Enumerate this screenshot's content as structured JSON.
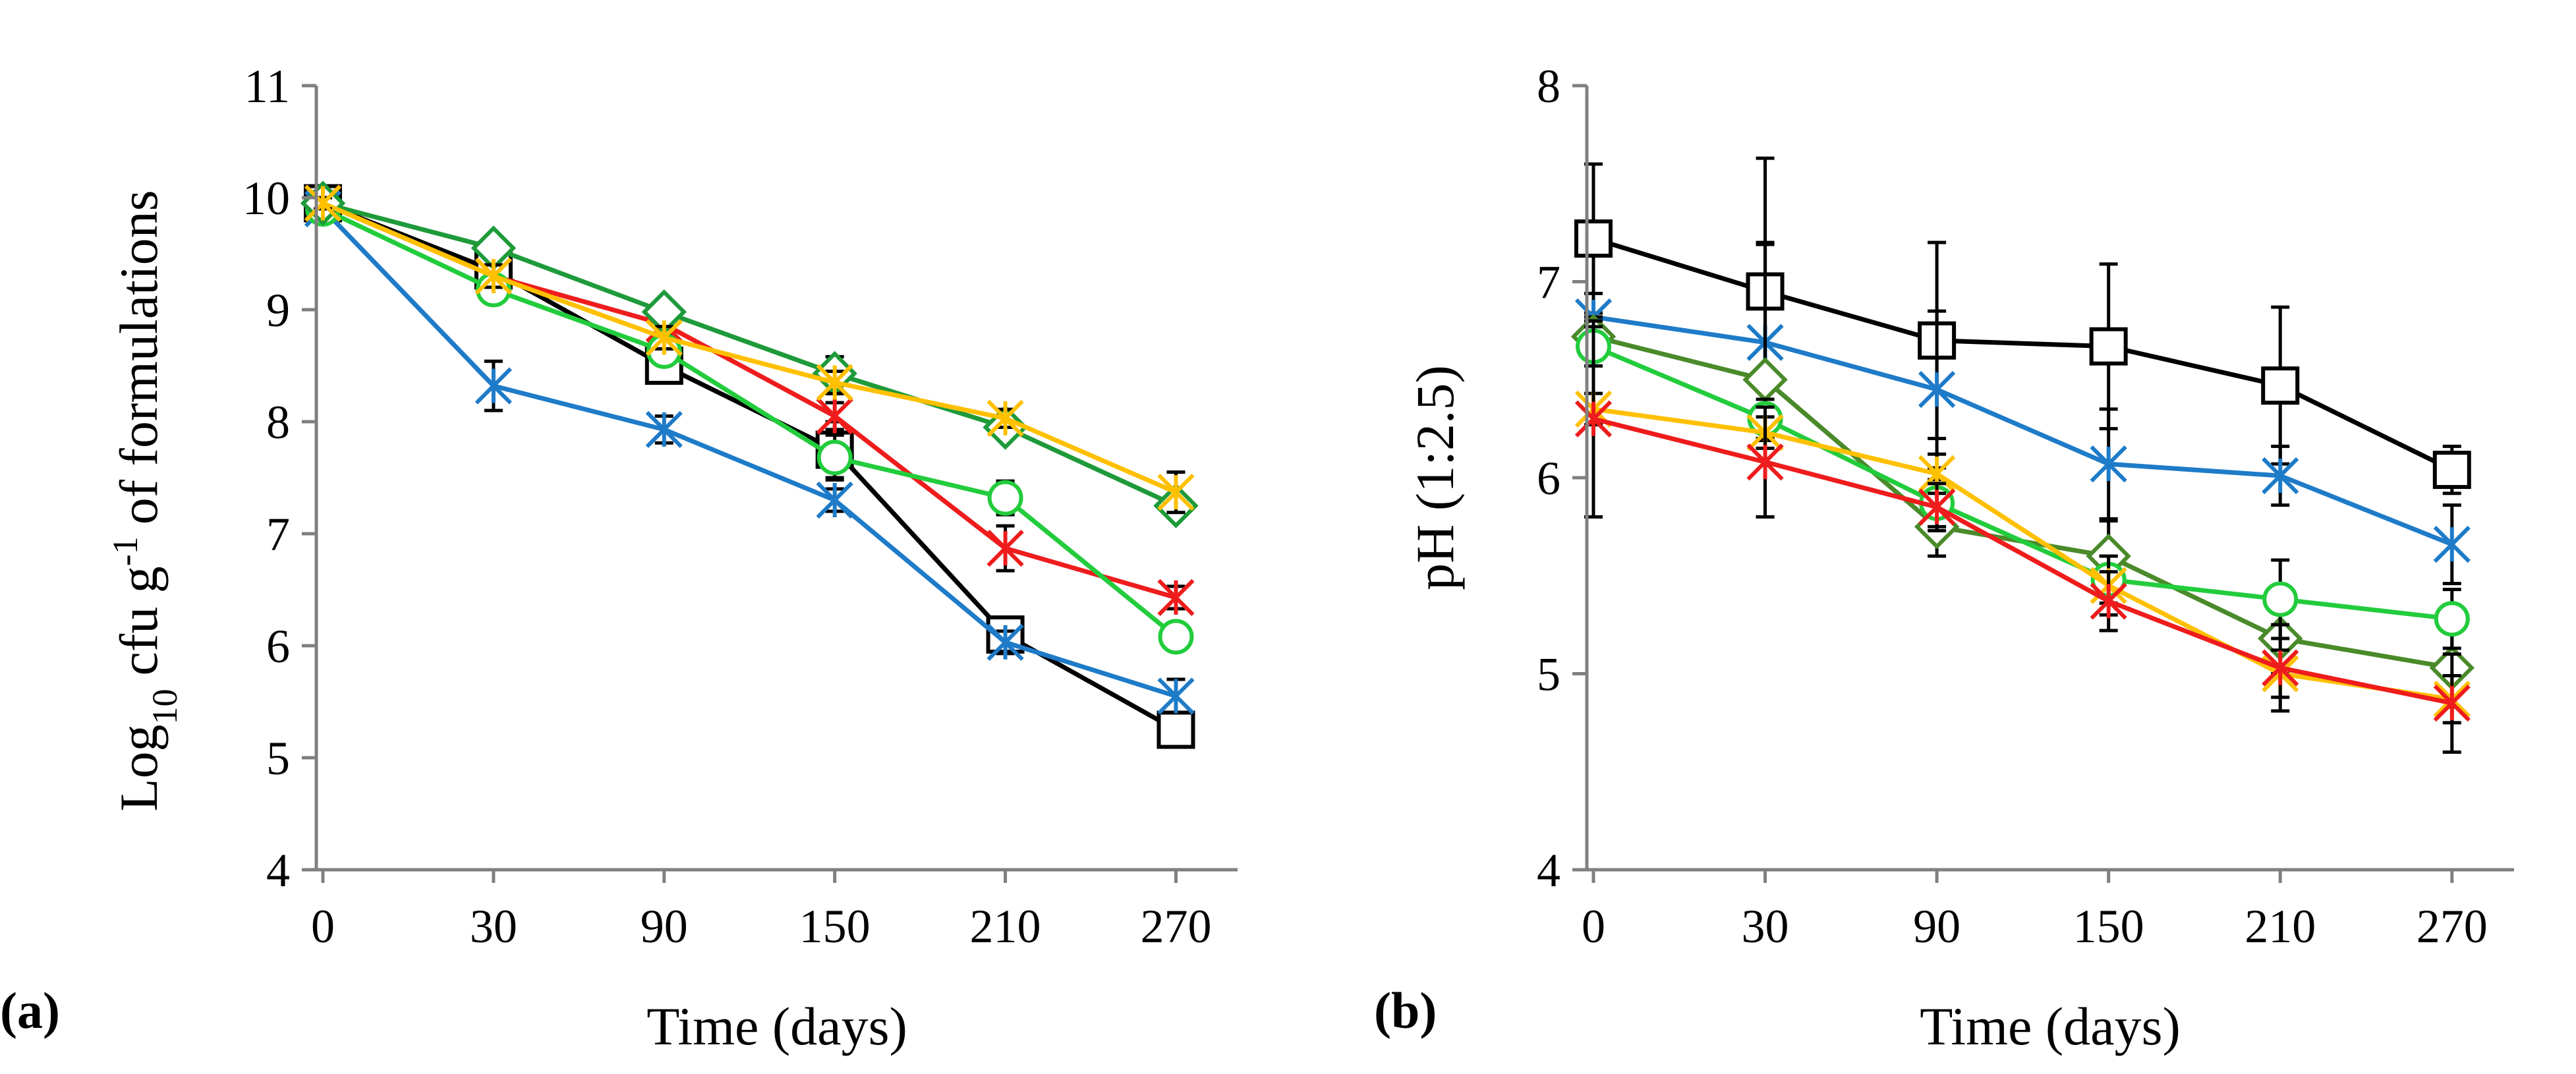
{
  "figure": {
    "panels": [
      "(a)",
      "(b)"
    ]
  },
  "chart_data": [
    {
      "type": "line",
      "panel_label": "(a)",
      "title": "",
      "xlabel": "Time (days)",
      "ylabel_main": "Log",
      "ylabel_sub": "10",
      "ylabel_unit": "cfu g",
      "ylabel_sup": "-1",
      "ylabel_rest": "of formulations",
      "categories": [
        "0",
        "30",
        "90",
        "150",
        "210",
        "270"
      ],
      "ylim": [
        4,
        11
      ],
      "yticks": [
        4,
        5,
        6,
        7,
        8,
        9,
        10,
        11
      ],
      "grid": false,
      "series": [
        {
          "name": "black-square",
          "color": "#000000",
          "marker": "square",
          "values": [
            9.95,
            9.35,
            8.5,
            7.75,
            6.1,
            5.25
          ],
          "errors": [
            0.08,
            0.2,
            0.12,
            0.25,
            0.12,
            0.1
          ]
        },
        {
          "name": "blue-star",
          "color": "#1E7BC8",
          "marker": "star",
          "values": [
            9.9,
            8.32,
            7.93,
            7.3,
            6.03,
            5.55
          ],
          "errors": [
            0.05,
            0.22,
            0.12,
            0.1,
            0.1,
            0.15
          ]
        },
        {
          "name": "red-star",
          "color": "#EE1C1C",
          "marker": "star",
          "values": [
            9.95,
            9.3,
            8.87,
            8.05,
            6.87,
            6.43
          ],
          "errors": [
            0.05,
            0.1,
            0.1,
            0.12,
            0.2,
            0.1
          ]
        },
        {
          "name": "lime-circle",
          "color": "#22CC3C",
          "marker": "circle",
          "values": [
            9.9,
            9.18,
            8.63,
            7.68,
            7.32,
            6.08
          ],
          "errors": [
            0.05,
            0.1,
            0.1,
            0.2,
            0.15,
            0.12
          ]
        },
        {
          "name": "green-diamond",
          "color": "#1E9A3A",
          "marker": "diamond",
          "values": [
            9.95,
            9.55,
            8.98,
            8.43,
            7.95,
            7.25
          ],
          "errors": [
            0.05,
            0.08,
            0.08,
            0.15,
            0.1,
            0.1
          ]
        },
        {
          "name": "yellow-star",
          "color": "#FFC000",
          "marker": "star",
          "values": [
            9.95,
            9.3,
            8.75,
            8.35,
            8.03,
            7.37
          ],
          "errors": [
            0.05,
            0.1,
            0.1,
            0.1,
            0.08,
            0.18
          ]
        }
      ]
    },
    {
      "type": "line",
      "panel_label": "(b)",
      "title": "",
      "xlabel": "Time (days)",
      "ylabel": "pH (1:2.5)",
      "categories": [
        "0",
        "30",
        "90",
        "150",
        "210",
        "270"
      ],
      "ylim": [
        4,
        8
      ],
      "yticks": [
        4,
        5,
        6,
        7,
        8
      ],
      "grid": false,
      "series": [
        {
          "name": "black-square",
          "color": "#000000",
          "marker": "square",
          "values": [
            7.22,
            6.95,
            6.7,
            6.67,
            6.47,
            6.04
          ],
          "errors": [
            0.38,
            0.68,
            0.5,
            0.42,
            0.4,
            0.12
          ]
        },
        {
          "name": "blue-star",
          "color": "#1E7BC8",
          "marker": "star",
          "values": [
            6.82,
            6.69,
            6.45,
            6.07,
            6.01,
            5.66
          ],
          "errors": [
            0.12,
            0.5,
            0.4,
            0.28,
            0.15,
            0.2
          ]
        },
        {
          "name": "olive-diamond",
          "color": "#4A8A2A",
          "marker": "diamond",
          "values": [
            6.72,
            6.5,
            5.75,
            5.6,
            5.18,
            5.03
          ],
          "errors": [
            0.1,
            0.7,
            0.15,
            0.18,
            0.18,
            0.2
          ]
        },
        {
          "name": "lime-circle",
          "color": "#22CC3C",
          "marker": "circle",
          "values": [
            6.67,
            6.3,
            5.87,
            5.48,
            5.38,
            5.28
          ],
          "errors": [
            0.1,
            0.1,
            0.12,
            0.12,
            0.2,
            0.15
          ]
        },
        {
          "name": "yellow-star",
          "color": "#FFC000",
          "marker": "star",
          "values": [
            6.35,
            6.23,
            6.02,
            5.45,
            5.0,
            4.87
          ],
          "errors": [
            0.08,
            0.08,
            0.1,
            0.15,
            0.12,
            0.12
          ]
        },
        {
          "name": "red-star",
          "color": "#EE1C1C",
          "marker": "star",
          "values": [
            6.3,
            6.08,
            5.85,
            5.37,
            5.03,
            4.85
          ],
          "errors": [
            0.5,
            0.28,
            0.12,
            0.15,
            0.22,
            0.25
          ]
        }
      ]
    }
  ]
}
